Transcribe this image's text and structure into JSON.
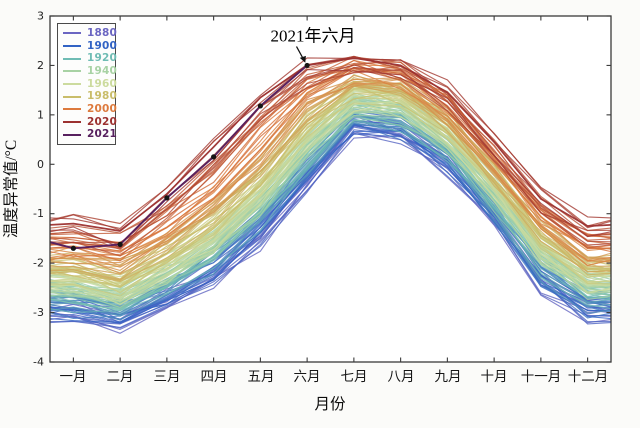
{
  "chart_data": {
    "type": "line",
    "title": "",
    "xlabel": "月份",
    "ylabel": "温度异常值/°C",
    "categories": [
      "一月",
      "二月",
      "三月",
      "四月",
      "五月",
      "六月",
      "七月",
      "八月",
      "九月",
      "十月",
      "十一月",
      "十二月"
    ],
    "y_tick_labels": [
      "3",
      "2",
      "1",
      "0",
      "-1",
      "-2",
      "-3",
      "-4"
    ],
    "ylim": [
      -4,
      3
    ],
    "grid": false,
    "legend_position": "upper-left",
    "annotation": {
      "text": "2021年六月",
      "month": "六月",
      "month_index": 5,
      "value": 2.0
    },
    "band": {
      "description": "One line per year from 1880 to 2020; values and colors interpolated between the anchor series below (rainbow colormap: blue = oldest, red = newest).",
      "year_start": 1880,
      "year_end": 2020
    },
    "marker_color": "#151515",
    "series": [
      {
        "name": "1880",
        "color": "#6b66c2",
        "values": [
          -3.0,
          -3.25,
          -2.8,
          -2.3,
          -1.5,
          -0.4,
          0.7,
          0.6,
          -0.05,
          -1.15,
          -2.4,
          -3.0
        ]
      },
      {
        "name": "1900",
        "color": "#3263c4",
        "values": [
          -2.85,
          -3.05,
          -2.6,
          -2.05,
          -1.25,
          -0.15,
          0.85,
          0.75,
          0.1,
          -1.0,
          -2.2,
          -2.85
        ]
      },
      {
        "name": "1920",
        "color": "#6fbcb4",
        "values": [
          -2.65,
          -2.85,
          -2.4,
          -1.85,
          -1.0,
          0.1,
          1.05,
          0.95,
          0.3,
          -0.8,
          -2.0,
          -2.65
        ]
      },
      {
        "name": "1940",
        "color": "#a8d2a4",
        "values": [
          -2.4,
          -2.6,
          -2.15,
          -1.55,
          -0.7,
          0.45,
          1.3,
          1.2,
          0.55,
          -0.5,
          -1.75,
          -2.4
        ]
      },
      {
        "name": "1960",
        "color": "#ccdb9e",
        "values": [
          -2.35,
          -2.55,
          -2.05,
          -1.45,
          -0.55,
          0.55,
          1.35,
          1.25,
          0.6,
          -0.45,
          -1.7,
          -2.35
        ]
      },
      {
        "name": "1980",
        "color": "#c9bd6a",
        "values": [
          -2.05,
          -2.25,
          -1.7,
          -1.05,
          -0.2,
          0.95,
          1.6,
          1.5,
          0.85,
          -0.2,
          -1.4,
          -2.05
        ]
      },
      {
        "name": "2000",
        "color": "#dd7a3d",
        "values": [
          -1.7,
          -1.85,
          -1.25,
          -0.5,
          0.45,
          1.45,
          1.9,
          1.8,
          1.15,
          0.1,
          -1.05,
          -1.7
        ]
      },
      {
        "name": "2020",
        "color": "#9c3130",
        "values": [
          -1.2,
          -1.35,
          -0.6,
          0.35,
          1.35,
          2.0,
          2.15,
          2.0,
          1.45,
          0.45,
          -0.7,
          -1.25
        ]
      },
      {
        "name": "2021",
        "color": "#58215f",
        "values": [
          -1.7,
          -1.62,
          -0.68,
          0.15,
          1.18,
          2.0
        ],
        "markers": true,
        "lead_in_value": -1.45
      }
    ]
  }
}
